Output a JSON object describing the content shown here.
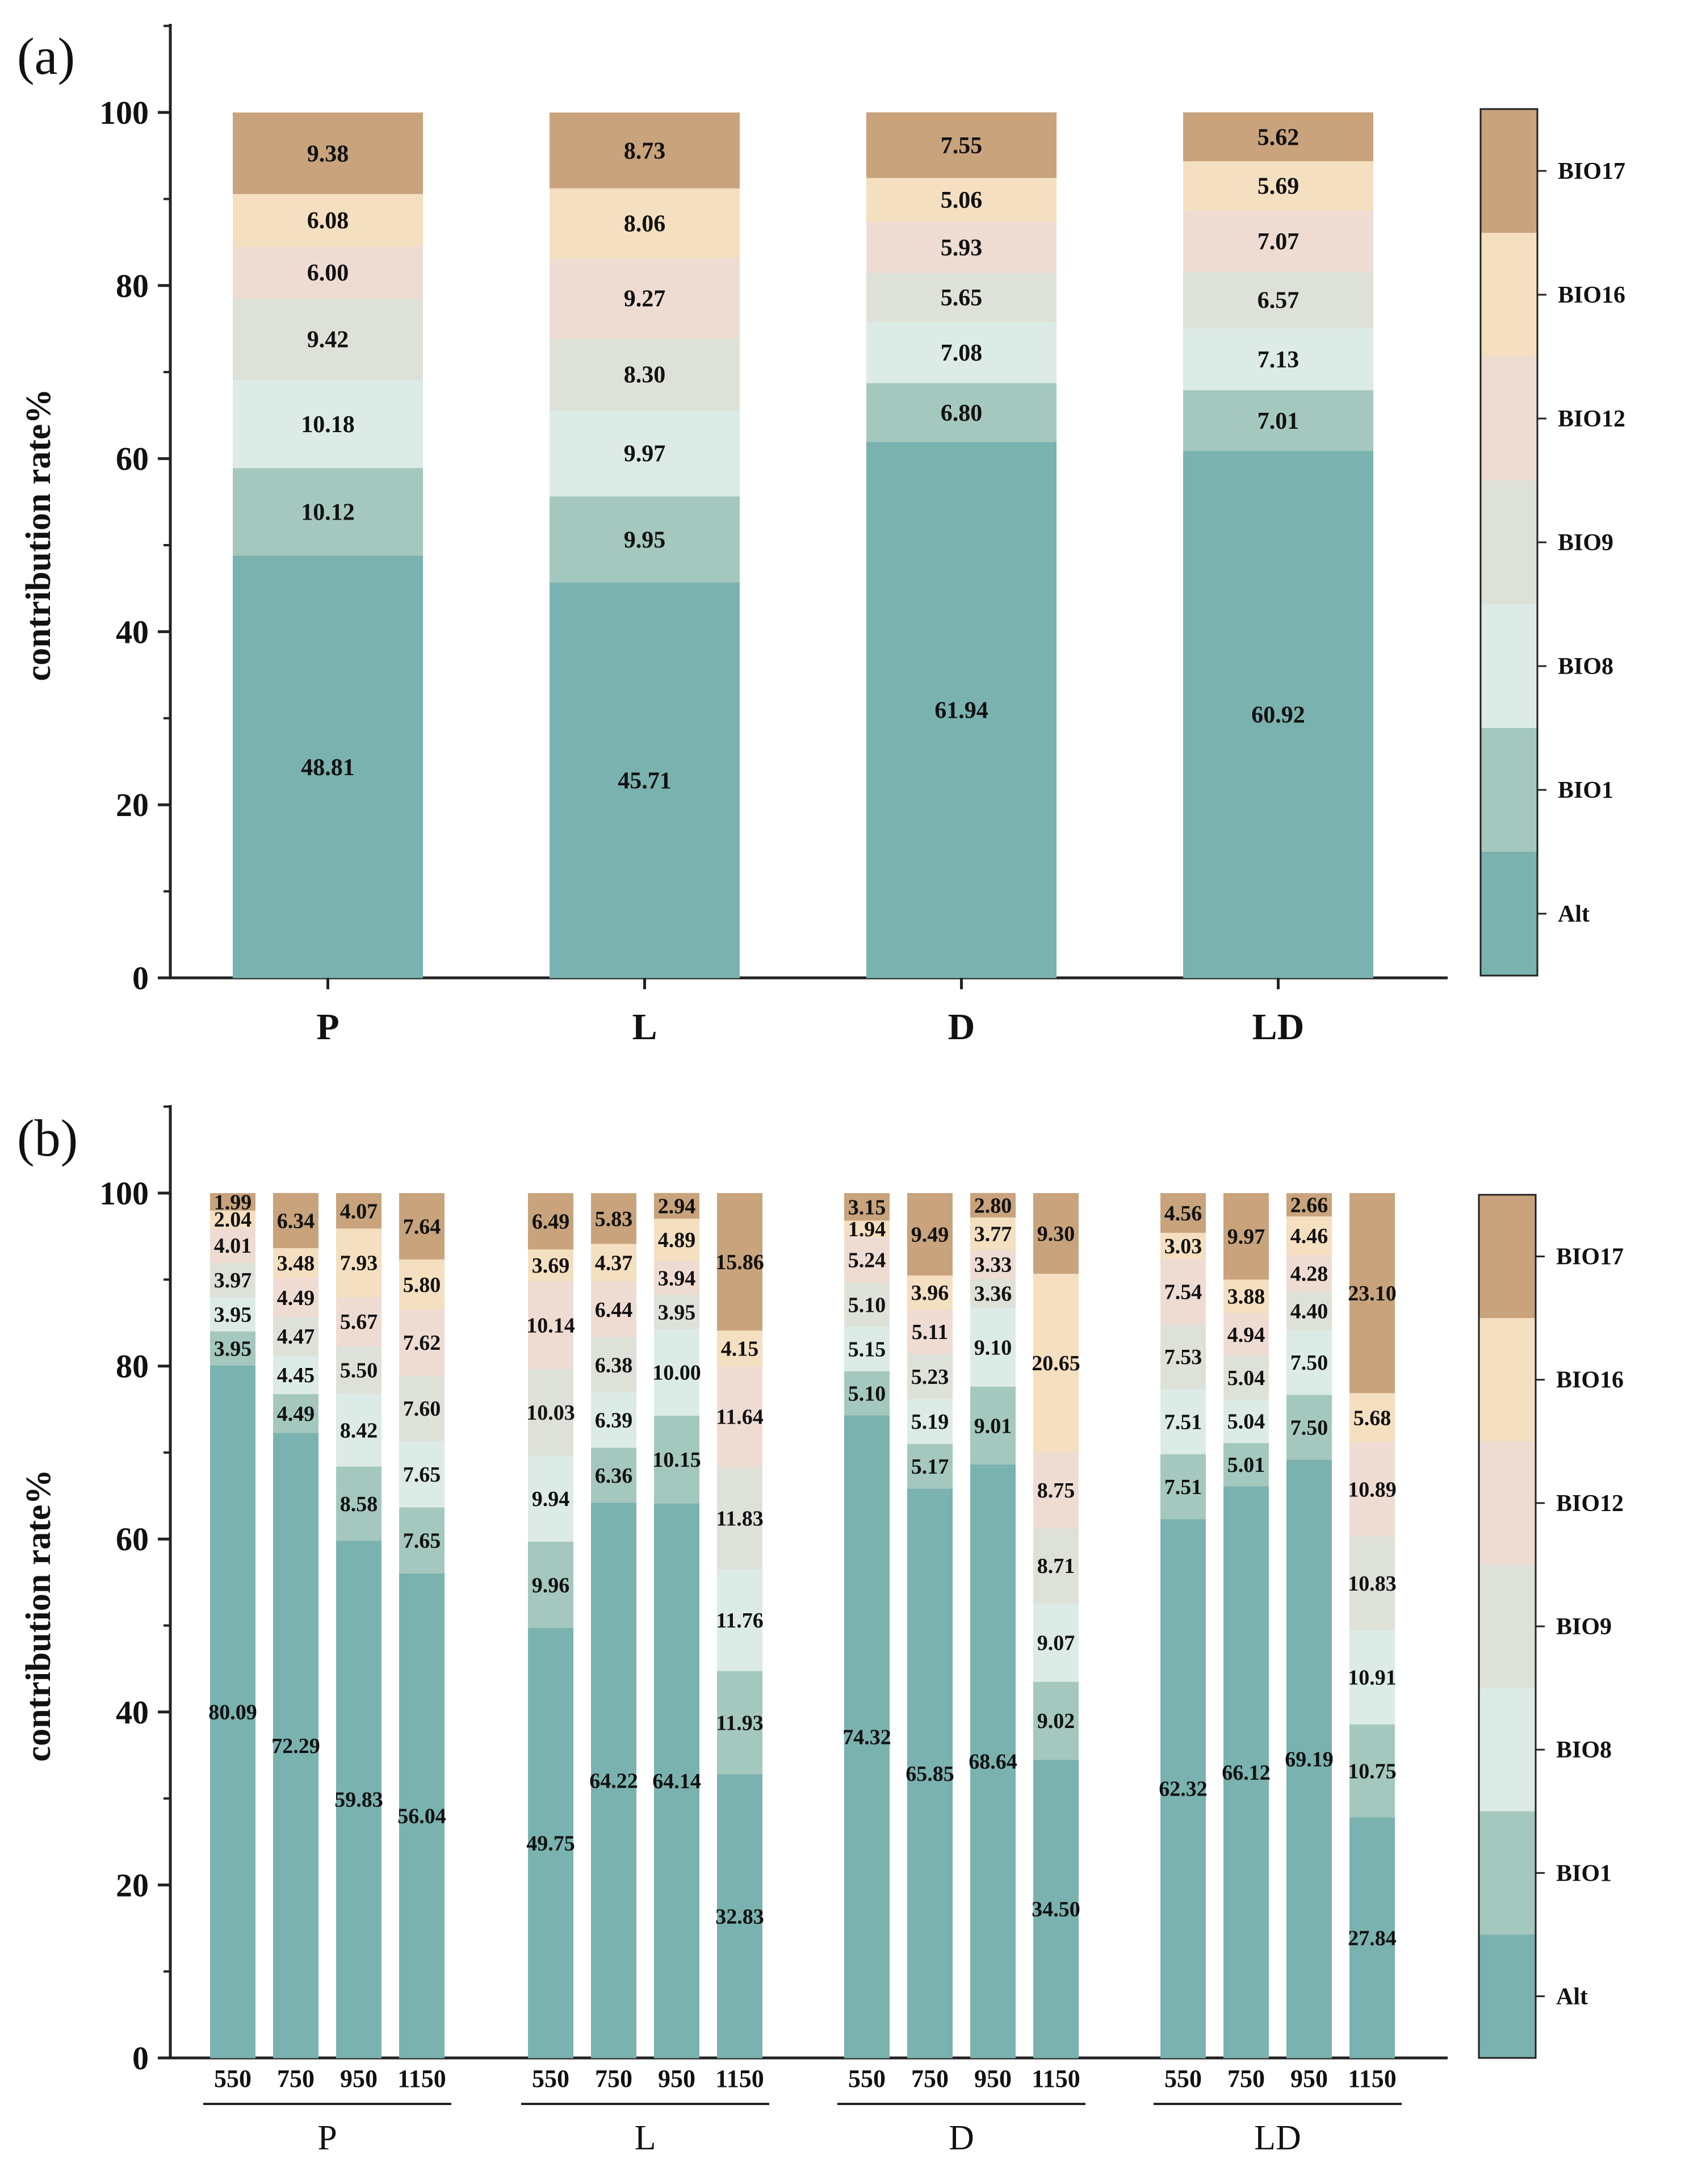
{
  "colors": {
    "Alt": "#7AB2AF",
    "BIO1": "#A4C8BE",
    "BIO8": "#DCEBE6",
    "BIO9": "#DEE1D8",
    "BIO12": "#EEDCD3",
    "BIO16": "#F4DFC0",
    "BIO17": "#C8A37C",
    "axis": "#222222"
  },
  "chart_data": [
    {
      "panel_label": "(a)",
      "type": "bar",
      "stacked": true,
      "ylabel": "contribution rate%",
      "xlabel": "",
      "ylim": [
        0,
        110
      ],
      "yticks": [
        "0",
        "20",
        "40",
        "60",
        "80",
        "100"
      ],
      "categories": [
        "P",
        "L",
        "D",
        "LD"
      ],
      "series": [
        {
          "name": "Alt",
          "values": [
            48.81,
            45.71,
            61.94,
            60.92
          ],
          "labels": [
            "48.81",
            "45.71",
            "61.94",
            "60.92"
          ]
        },
        {
          "name": "BIO1",
          "values": [
            10.12,
            9.95,
            6.8,
            7.01
          ],
          "labels": [
            "10.12",
            "9.95",
            "6.80",
            "7.01"
          ]
        },
        {
          "name": "BIO8",
          "values": [
            10.18,
            9.97,
            7.08,
            7.13
          ],
          "labels": [
            "10.18",
            "9.97",
            "7.08",
            "7.13"
          ]
        },
        {
          "name": "BIO9",
          "values": [
            9.42,
            8.3,
            5.65,
            6.57
          ],
          "labels": [
            "9.42",
            "8.30",
            "5.65",
            "6.57"
          ]
        },
        {
          "name": "BIO12",
          "values": [
            6.0,
            9.27,
            5.93,
            7.07
          ],
          "labels": [
            "6.00",
            "9.27",
            "5.93",
            "7.07"
          ]
        },
        {
          "name": "BIO16",
          "values": [
            6.08,
            8.06,
            5.06,
            5.69
          ],
          "labels": [
            "6.08",
            "8.06",
            "5.06",
            "5.69"
          ]
        },
        {
          "name": "BIO17",
          "values": [
            9.38,
            8.73,
            7.55,
            5.62
          ],
          "labels": [
            "9.38",
            "8.73",
            "7.55",
            "5.62"
          ]
        }
      ],
      "legend": [
        "BIO17",
        "BIO16",
        "BIO12",
        "BIO9",
        "BIO8",
        "BIO1",
        "Alt"
      ]
    },
    {
      "panel_label": "(b)",
      "type": "bar",
      "stacked": true,
      "ylabel": "contribution rate%",
      "xlabel": "",
      "ylim": [
        0,
        110
      ],
      "yticks": [
        "0",
        "20",
        "40",
        "60",
        "80",
        "100"
      ],
      "groups": [
        "P",
        "L",
        "D",
        "LD"
      ],
      "categories": [
        "550",
        "750",
        "950",
        "1150",
        "550",
        "750",
        "950",
        "1150",
        "550",
        "750",
        "950",
        "1150",
        "550",
        "750",
        "950",
        "1150"
      ],
      "series": [
        {
          "name": "Alt",
          "values": [
            80.09,
            72.29,
            59.83,
            56.04,
            49.75,
            64.22,
            64.14,
            32.83,
            74.32,
            65.85,
            68.64,
            34.5,
            62.32,
            66.12,
            69.19,
            27.84
          ],
          "labels": [
            "80.09",
            "72.29",
            "59.83",
            "56.04",
            "49.75",
            "64.22",
            "64.14",
            "32.83",
            "74.32",
            "65.85",
            "68.64",
            "34.50",
            "62.32",
            "66.12",
            "69.19",
            "27.84"
          ]
        },
        {
          "name": "BIO1",
          "values": [
            3.95,
            4.49,
            8.58,
            7.65,
            9.96,
            6.36,
            10.15,
            11.93,
            5.1,
            5.17,
            9.01,
            9.02,
            7.51,
            5.01,
            7.5,
            10.75
          ],
          "labels": [
            "3.95",
            "4.49",
            "8.58",
            "7.65",
            "9.96",
            "6.36",
            "10.15",
            "11.93",
            "5.10",
            "5.17",
            "9.01",
            "9.02",
            "7.51",
            "5.01",
            "7.50",
            "10.75"
          ]
        },
        {
          "name": "BIO8",
          "values": [
            3.95,
            4.45,
            8.42,
            7.65,
            9.94,
            6.39,
            10.0,
            11.76,
            5.15,
            5.19,
            9.1,
            9.07,
            7.51,
            5.04,
            7.5,
            10.91
          ],
          "labels": [
            "3.95",
            "4.45",
            "8.42",
            "7.65",
            "9.94",
            "6.39",
            "10.00",
            "11.76",
            "5.15",
            "5.19",
            "9.10",
            "9.07",
            "7.51",
            "5.04",
            "7.50",
            "10.91"
          ]
        },
        {
          "name": "BIO9",
          "values": [
            3.97,
            4.47,
            5.5,
            7.6,
            10.03,
            6.38,
            3.95,
            11.83,
            5.1,
            5.23,
            3.36,
            8.71,
            7.53,
            5.04,
            4.4,
            10.83
          ],
          "labels": [
            "3.97",
            "4.47",
            "5.50",
            "7.60",
            "10.03",
            "6.38",
            "3.95",
            "11.83",
            "5.10",
            "5.23",
            "3.36",
            "8.71",
            "7.53",
            "5.04",
            "4.40",
            "10.83"
          ]
        },
        {
          "name": "BIO12",
          "values": [
            4.01,
            4.49,
            5.67,
            7.62,
            10.14,
            6.44,
            3.94,
            11.64,
            5.24,
            5.11,
            3.33,
            8.75,
            7.54,
            4.94,
            4.28,
            10.89
          ],
          "labels": [
            "4.01",
            "4.49",
            "5.67",
            "7.62",
            "10.14",
            "6.44",
            "3.94",
            "11.64",
            "5.24",
            "5.11",
            "3.33",
            "8.75",
            "7.54",
            "4.94",
            "4.28",
            "10.89"
          ]
        },
        {
          "name": "BIO16",
          "values": [
            2.04,
            3.48,
            7.93,
            5.8,
            3.69,
            4.37,
            4.89,
            4.15,
            1.94,
            3.96,
            3.77,
            20.65,
            3.03,
            3.88,
            4.46,
            5.68
          ],
          "labels": [
            "2.04",
            "3.48",
            "7.93",
            "5.80",
            "3.69",
            "4.37",
            "4.89",
            "4.15",
            "1.94",
            "3.96",
            "3.77",
            "20.65",
            "3.03",
            "3.88",
            "4.46",
            "5.68"
          ]
        },
        {
          "name": "BIO17",
          "values": [
            1.99,
            6.34,
            4.07,
            7.64,
            6.49,
            5.83,
            2.94,
            15.86,
            3.15,
            9.49,
            2.8,
            9.3,
            4.56,
            9.97,
            2.66,
            23.1
          ],
          "labels": [
            "1.99",
            "6.34",
            "4.07",
            "7.64",
            "6.49",
            "5.83",
            "2.94",
            "15.86",
            "3.15",
            "9.49",
            "2.80",
            "9.30",
            "4.56",
            "9.97",
            "2.66",
            "23.10"
          ]
        }
      ],
      "legend": [
        "BIO17",
        "BIO16",
        "BIO12",
        "BIO9",
        "BIO8",
        "BIO1",
        "Alt"
      ]
    }
  ]
}
